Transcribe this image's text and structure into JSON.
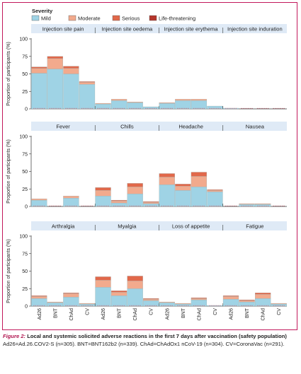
{
  "colors": {
    "mild": "#9fd3e5",
    "moderate": "#f2aa8d",
    "serious": "#e1684a",
    "life_threatening": "#b5352b",
    "frame": "#c2185b",
    "panel_header": "#dfeaf6",
    "caption_title": "#b0154f"
  },
  "caption": {
    "figure_label": "Figure 2:",
    "title_rest": " Local and systemic solicited adverse reactions in the first 7 days after vaccination (safety population)",
    "footnote": "Ad26=Ad.26.COV2-S (n=305). BNT=BNT162b2 (n=339). ChAd=ChAdOx1 nCoV-19 (n=304). CV=CoronaVac (n=291)."
  },
  "chart_data": {
    "type": "bar",
    "stacked": true,
    "legend": {
      "title": "Severity",
      "placement": "top-left",
      "entries": [
        "Mild",
        "Moderate",
        "Serious",
        "Life-threatening"
      ]
    },
    "ylabel": "Proportion of participants (%)",
    "ylim": [
      0,
      100
    ],
    "yticks": [
      0,
      25,
      50,
      75,
      100
    ],
    "categories": [
      "Ad26",
      "BNT",
      "ChAd",
      "CV"
    ],
    "rows": [
      {
        "show_x_labels": false,
        "panels": [
          {
            "title": "Injection site pain",
            "series": [
              {
                "name": "Mild",
                "values": [
                  51,
                  57,
                  50,
                  35
                ]
              },
              {
                "name": "Moderate",
                "values": [
                  7,
                  15,
                  8,
                  3
                ]
              },
              {
                "name": "Serious",
                "values": [
                  2,
                  3,
                  3,
                  1
                ]
              },
              {
                "name": "Life-threatening",
                "values": [
                  0,
                  0,
                  0,
                  0
                ]
              }
            ]
          },
          {
            "title": "Injection site oedema",
            "series": [
              {
                "name": "Mild",
                "values": [
                  7,
                  12,
                  9,
                  3
                ]
              },
              {
                "name": "Moderate",
                "values": [
                  1,
                  2,
                  1,
                  0
                ]
              },
              {
                "name": "Serious",
                "values": [
                  0,
                  0,
                  0,
                  0
                ]
              },
              {
                "name": "Life-threatening",
                "values": [
                  0,
                  0,
                  0,
                  0
                ]
              }
            ]
          },
          {
            "title": "Injection site erythema",
            "series": [
              {
                "name": "Mild",
                "values": [
                  8,
                  12,
                  12,
                  4
                ]
              },
              {
                "name": "Moderate",
                "values": [
                  1,
                  2,
                  2,
                  0
                ]
              },
              {
                "name": "Serious",
                "values": [
                  0,
                  0,
                  0,
                  0
                ]
              },
              {
                "name": "Life-threatening",
                "values": [
                  0,
                  0,
                  0,
                  0
                ]
              }
            ]
          },
          {
            "title": "Injection site induration",
            "series": [
              {
                "name": "Mild",
                "values": [
                  1,
                  0,
                  0,
                  0
                ]
              },
              {
                "name": "Moderate",
                "values": [
                  0,
                  0,
                  0,
                  0
                ]
              },
              {
                "name": "Serious",
                "values": [
                  0,
                  0,
                  0,
                  0
                ]
              },
              {
                "name": "Life-threatening",
                "values": [
                  0,
                  0,
                  0,
                  0
                ]
              }
            ]
          }
        ]
      },
      {
        "show_x_labels": false,
        "panels": [
          {
            "title": "Fever",
            "series": [
              {
                "name": "Mild",
                "values": [
                  9,
                  0,
                  12,
                  0
                ]
              },
              {
                "name": "Moderate",
                "values": [
                  2,
                  0,
                  3,
                  0
                ]
              },
              {
                "name": "Serious",
                "values": [
                  0,
                  0,
                  0,
                  0
                ]
              },
              {
                "name": "Life-threatening",
                "values": [
                  0,
                  0,
                  0,
                  0
                ]
              }
            ]
          },
          {
            "title": "Chills",
            "series": [
              {
                "name": "Mild",
                "values": [
                  15,
                  5,
                  18,
                  4
                ]
              },
              {
                "name": "Moderate",
                "values": [
                  8,
                  3,
                  10,
                  2
                ]
              },
              {
                "name": "Serious",
                "values": [
                  4,
                  1,
                  5,
                  1
                ]
              },
              {
                "name": "Life-threatening",
                "values": [
                  0,
                  0,
                  0,
                  0
                ]
              }
            ]
          },
          {
            "title": "Headache",
            "series": [
              {
                "name": "Mild",
                "values": [
                  31,
                  23,
                  28,
                  21
                ]
              },
              {
                "name": "Moderate",
                "values": [
                  11,
                  6,
                  15,
                  2
                ]
              },
              {
                "name": "Serious",
                "values": [
                  5,
                  3,
                  6,
                  1
                ]
              },
              {
                "name": "Life-threatening",
                "values": [
                  0,
                  0,
                  0,
                  0
                ]
              }
            ]
          },
          {
            "title": "Nausea",
            "series": [
              {
                "name": "Mild",
                "values": [
                  0,
                  3,
                  3,
                  0
                ]
              },
              {
                "name": "Moderate",
                "values": [
                  0,
                  1,
                  1,
                  0
                ]
              },
              {
                "name": "Serious",
                "values": [
                  0,
                  0,
                  0,
                  0
                ]
              },
              {
                "name": "Life-threatening",
                "values": [
                  0,
                  0,
                  0,
                  0
                ]
              }
            ]
          }
        ]
      },
      {
        "show_x_labels": true,
        "panels": [
          {
            "title": "Arthralgia",
            "series": [
              {
                "name": "Mild",
                "values": [
                  11,
                  5,
                  13,
                  3
                ]
              },
              {
                "name": "Moderate",
                "values": [
                  3,
                  1,
                  5,
                  1
                ]
              },
              {
                "name": "Serious",
                "values": [
                  1,
                  0,
                  1,
                  0
                ]
              },
              {
                "name": "Life-threatening",
                "values": [
                  0,
                  0,
                  0,
                  0
                ]
              }
            ]
          },
          {
            "title": "Myalgia",
            "series": [
              {
                "name": "Mild",
                "values": [
                  27,
                  15,
                  25,
                  8
                ]
              },
              {
                "name": "Moderate",
                "values": [
                  10,
                  5,
                  11,
                  2
                ]
              },
              {
                "name": "Serious",
                "values": [
                  5,
                  2,
                  7,
                  1
                ]
              },
              {
                "name": "Life-threatening",
                "values": [
                  0,
                  0,
                  0,
                  0
                ]
              }
            ]
          },
          {
            "title": "Loss of appetite",
            "series": [
              {
                "name": "Mild",
                "values": [
                  5,
                  3,
                  9,
                  1
                ]
              },
              {
                "name": "Moderate",
                "values": [
                  1,
                  1,
                  2,
                  0
                ]
              },
              {
                "name": "Serious",
                "values": [
                  0,
                  0,
                  1,
                  0
                ]
              },
              {
                "name": "Life-threatening",
                "values": [
                  0,
                  0,
                  0,
                  0
                ]
              }
            ]
          },
          {
            "title": "Fatigue",
            "series": [
              {
                "name": "Mild",
                "values": [
                  10,
                  6,
                  11,
                  3
                ]
              },
              {
                "name": "Moderate",
                "values": [
                  4,
                  2,
                  6,
                  1
                ]
              },
              {
                "name": "Serious",
                "values": [
                  1,
                  1,
                  2,
                  0
                ]
              },
              {
                "name": "Life-threatening",
                "values": [
                  0,
                  0,
                  0,
                  0
                ]
              }
            ]
          }
        ]
      }
    ]
  }
}
